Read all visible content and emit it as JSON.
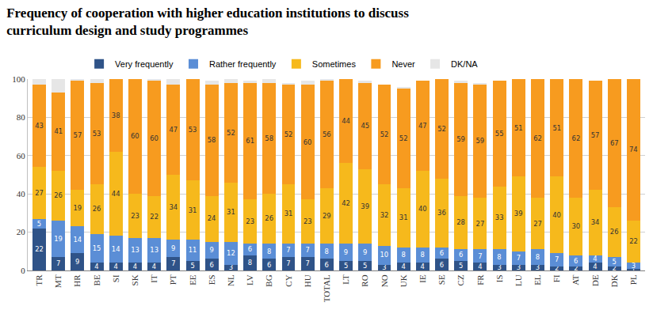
{
  "chart_data": {
    "type": "bar",
    "title": "Frequency of cooperation with higher education institutions to discuss\ncurriculum design and study programmes",
    "stacked": true,
    "grid": true,
    "legend": "top",
    "data_labels": true,
    "categories": [
      "TR",
      "MT",
      "HR",
      "BE",
      "SI",
      "SK",
      "IT",
      "PT",
      "EE",
      "ES",
      "NL",
      "LV",
      "BG",
      "CY",
      "HU",
      "TOTAL",
      "LT",
      "RO",
      "NO",
      "UK",
      "IE",
      "SE",
      "CZ",
      "FR",
      "IS",
      "LU",
      "EL",
      "FI",
      "AT",
      "DE",
      "DK",
      "PL"
    ],
    "ylim": [
      0,
      100
    ],
    "yticks": [
      0,
      20,
      40,
      60,
      80,
      100
    ],
    "series": [
      {
        "name": "Very frequently",
        "color": "#2f5388",
        "data_labels": true,
        "values": [
          22,
          7,
          9,
          4,
          4,
          4,
          4,
          7,
          5,
          6,
          3,
          8,
          6,
          7,
          7,
          6,
          5,
          5,
          3,
          4,
          4,
          6,
          5,
          4,
          3,
          3,
          3,
          2,
          2,
          4,
          2,
          1
        ]
      },
      {
        "name": "Rather frequently",
        "color": "#5b8ed6",
        "data_labels": true,
        "values": [
          5,
          19,
          14,
          15,
          14,
          13,
          13,
          9,
          11,
          9,
          12,
          6,
          8,
          7,
          7,
          8,
          9,
          9,
          10,
          8,
          8,
          6,
          6,
          7,
          8,
          7,
          8,
          7,
          6,
          4,
          5,
          3
        ]
      },
      {
        "name": "Sometimes",
        "color": "#f6b91c",
        "data_labels": true,
        "values": [
          27,
          26,
          19,
          26,
          44,
          23,
          22,
          34,
          31,
          24,
          31,
          23,
          26,
          31,
          23,
          29,
          42,
          39,
          32,
          31,
          40,
          36,
          28,
          27,
          33,
          39,
          27,
          40,
          30,
          34,
          26,
          22
        ]
      },
      {
        "name": "Never",
        "color": "#f79b1f",
        "data_labels": true,
        "values": [
          43,
          41,
          57,
          53,
          38,
          60,
          60,
          47,
          53,
          58,
          52,
          61,
          58,
          52,
          60,
          56,
          44,
          45,
          52,
          52,
          47,
          52,
          59,
          59,
          55,
          51,
          62,
          51,
          62,
          57,
          67,
          74
        ]
      },
      {
        "name": "DK/NA",
        "color": "#e6e6e6",
        "data_labels": false,
        "values": [
          3,
          7,
          1,
          2,
          0,
          0,
          1,
          3,
          0,
          2,
          2,
          1,
          2,
          1,
          2,
          1,
          0,
          1,
          0,
          1,
          0,
          0,
          1,
          1,
          0,
          0,
          0,
          0,
          0,
          0,
          0,
          0
        ]
      }
    ]
  }
}
